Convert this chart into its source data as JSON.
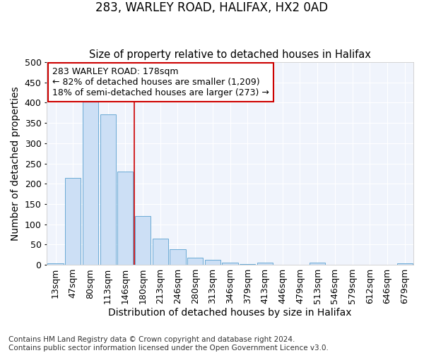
{
  "title1": "283, WARLEY ROAD, HALIFAX, HX2 0AD",
  "title2": "Size of property relative to detached houses in Halifax",
  "xlabel": "Distribution of detached houses by size in Halifax",
  "ylabel": "Number of detached properties",
  "categories": [
    "13sqm",
    "47sqm",
    "80sqm",
    "113sqm",
    "146sqm",
    "180sqm",
    "213sqm",
    "246sqm",
    "280sqm",
    "313sqm",
    "346sqm",
    "379sqm",
    "413sqm",
    "446sqm",
    "479sqm",
    "513sqm",
    "546sqm",
    "579sqm",
    "612sqm",
    "646sqm",
    "679sqm"
  ],
  "values": [
    3,
    215,
    405,
    372,
    230,
    120,
    65,
    38,
    18,
    13,
    6,
    2,
    5,
    1,
    1,
    5,
    1,
    0,
    0,
    0,
    3
  ],
  "bar_color": "#ccdff5",
  "bar_edge_color": "#6aaad4",
  "bar_edge_width": 0.7,
  "red_line_index": 5,
  "annotation_line1": "283 WARLEY ROAD: 178sqm",
  "annotation_line2": "← 82% of detached houses are smaller (1,209)",
  "annotation_line3": "18% of semi-detached houses are larger (273) →",
  "annotation_box_color": "#ffffff",
  "annotation_box_edge_color": "#cc0000",
  "ylim": [
    0,
    500
  ],
  "yticks": [
    0,
    50,
    100,
    150,
    200,
    250,
    300,
    350,
    400,
    450,
    500
  ],
  "footer_line1": "Contains HM Land Registry data © Crown copyright and database right 2024.",
  "footer_line2": "Contains public sector information licensed under the Open Government Licence v3.0.",
  "bg_color": "#ffffff",
  "plot_bg_color": "#f0f4fc",
  "grid_color": "#ffffff",
  "title1_fontsize": 12,
  "title2_fontsize": 10.5,
  "axis_label_fontsize": 10,
  "tick_fontsize": 9,
  "annotation_fontsize": 9,
  "footer_fontsize": 7.5
}
